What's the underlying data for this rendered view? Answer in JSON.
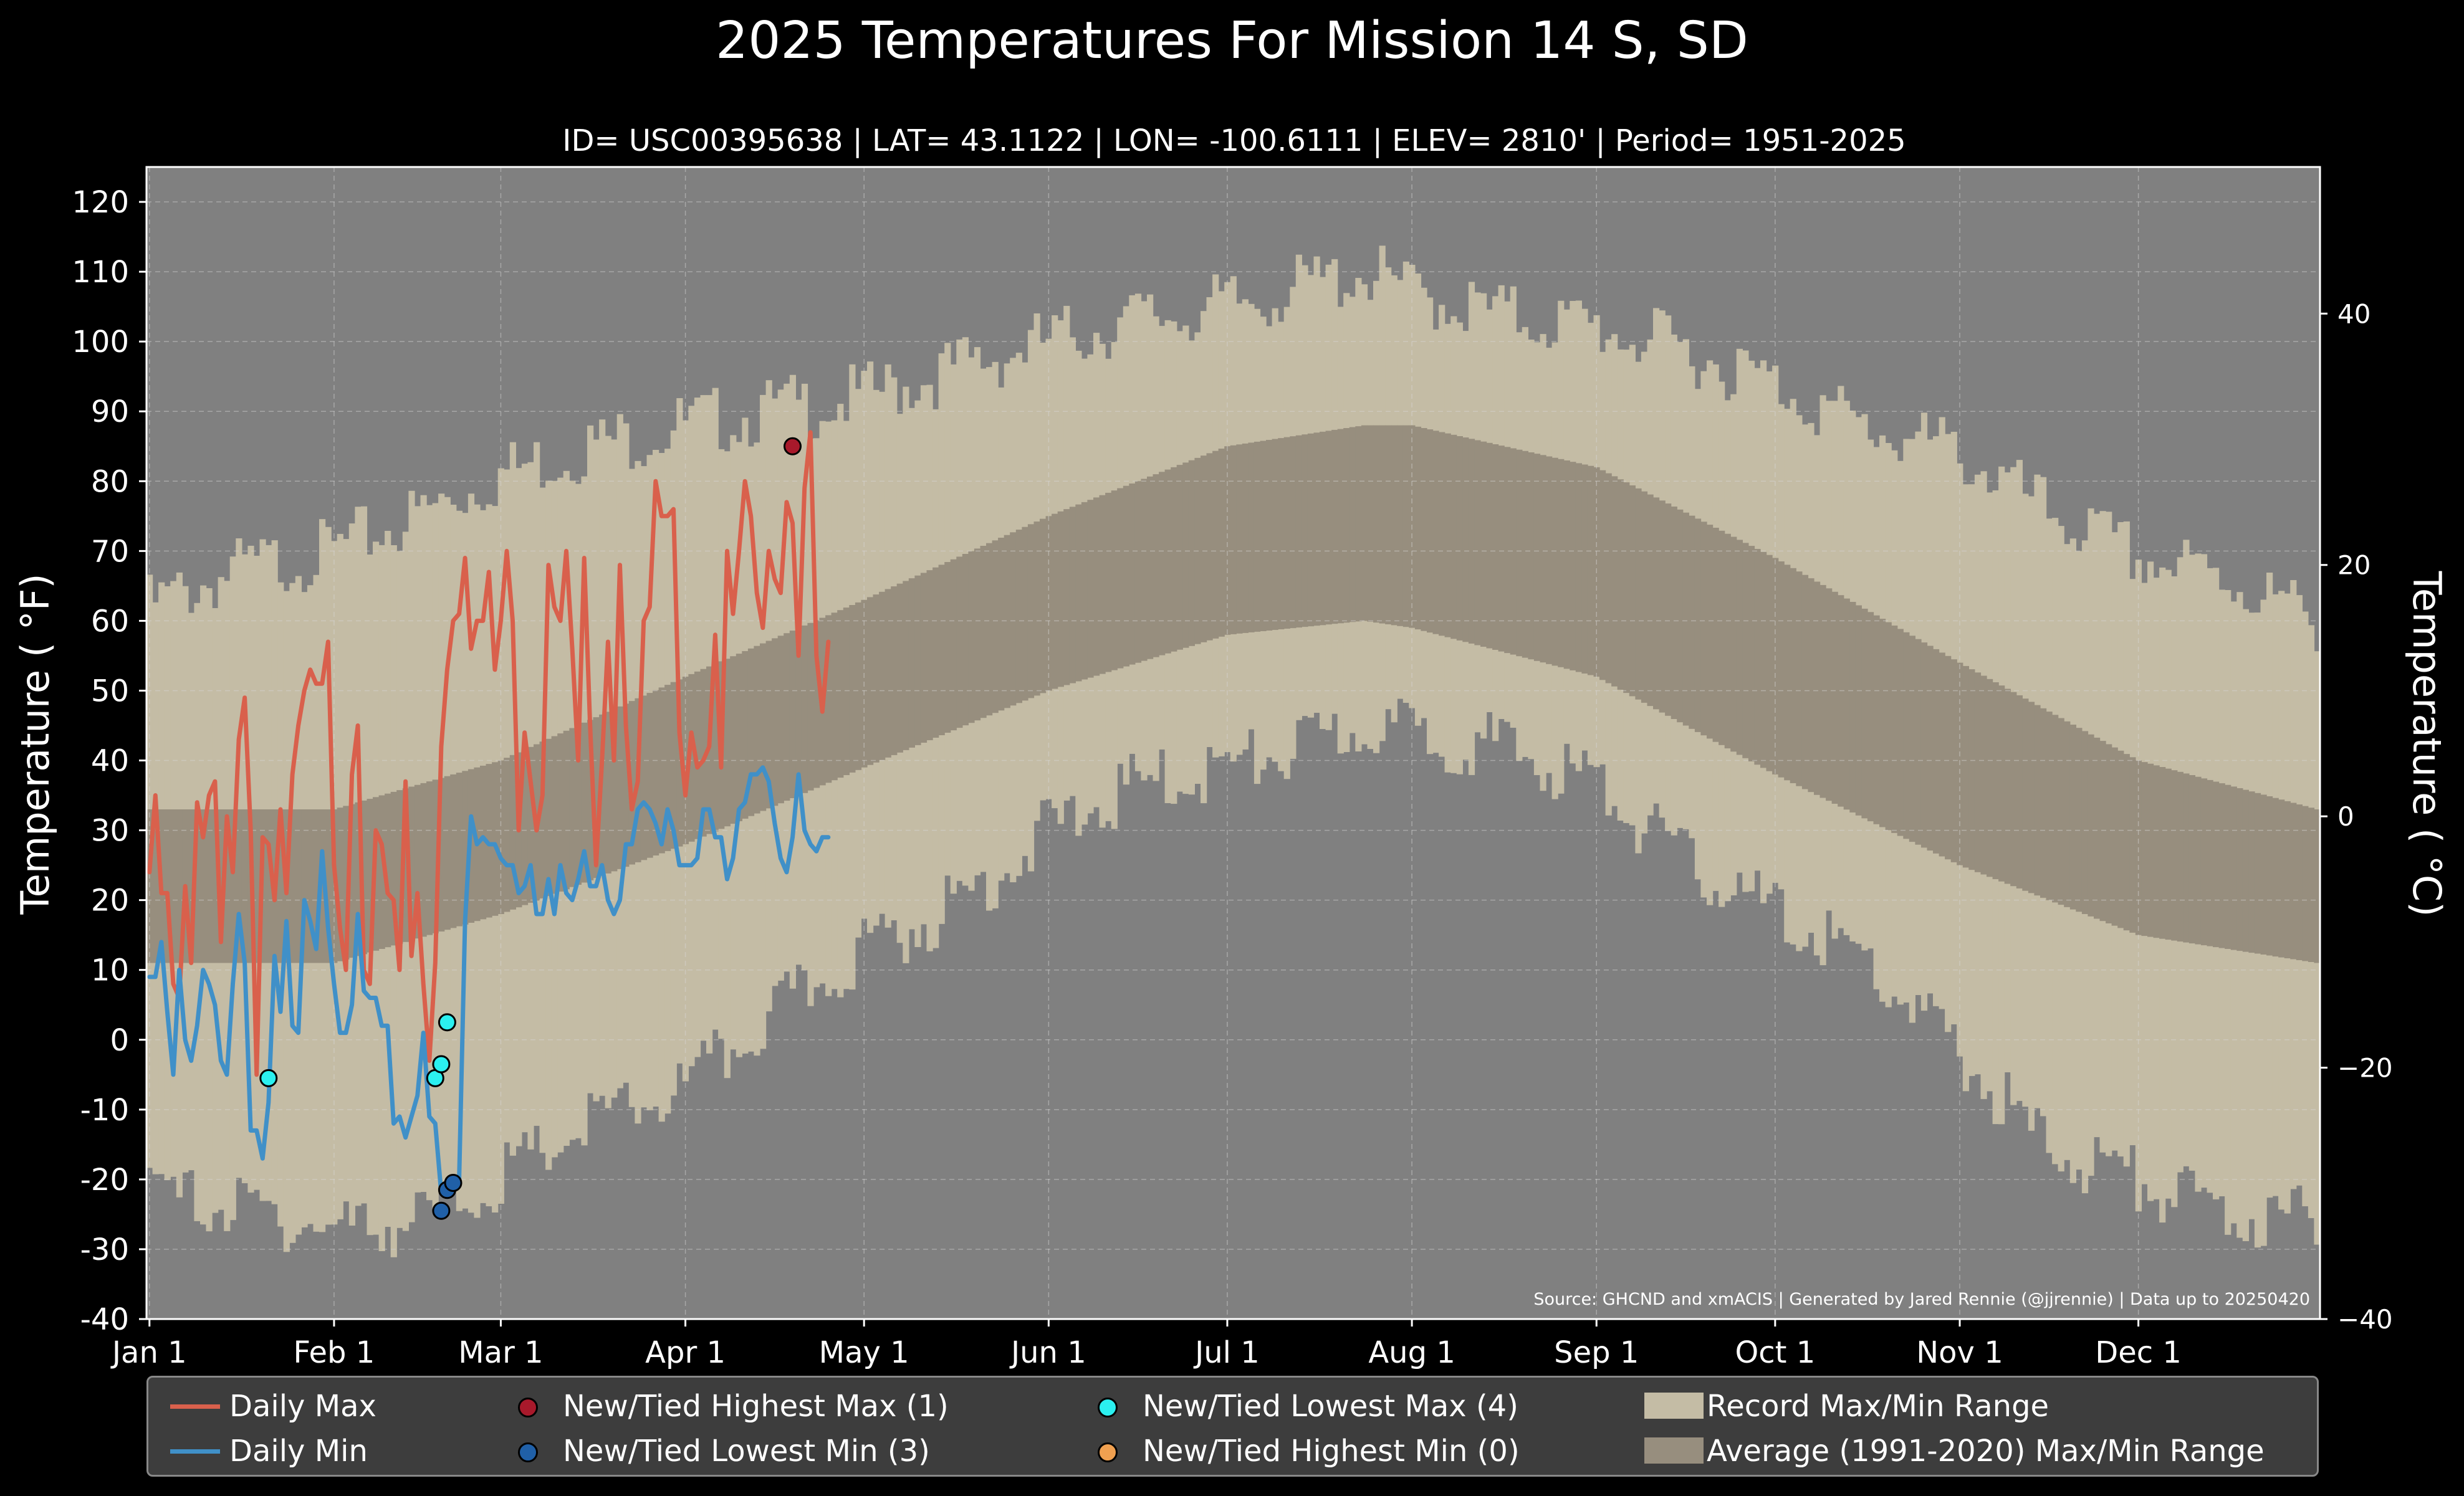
{
  "chart_data": {
    "type": "line",
    "title": "2025 Temperatures For Mission 14 S, SD",
    "subtitle": "ID= USC00395638 | LAT= 43.1122 | LON= -100.6111 | ELEV= 2810' | Period= 1951-2025",
    "ylabel": "Temperature ($^\\circ$F)",
    "ylabel_display": "Temperature ( °F)",
    "y2label_display": "Temperature ( °C)",
    "ylim": [
      -40,
      125
    ],
    "y2lim": [
      -40,
      51.67
    ],
    "yticks": [
      "-40",
      "-30",
      "-20",
      "-10",
      "0",
      "10",
      "20",
      "30",
      "40",
      "50",
      "60",
      "70",
      "80",
      "90",
      "100",
      "110",
      "120"
    ],
    "y2ticks": [
      "−40",
      "−20",
      "0",
      "20",
      "40"
    ],
    "xlim": [
      0.5,
      365.5
    ],
    "xticks": [
      {
        "day": 1,
        "label": "Jan 1"
      },
      {
        "day": 32,
        "label": "Feb 1"
      },
      {
        "day": 60,
        "label": "Mar 1"
      },
      {
        "day": 91,
        "label": "Apr 1"
      },
      {
        "day": 121,
        "label": "May 1"
      },
      {
        "day": 152,
        "label": "Jun 1"
      },
      {
        "day": 182,
        "label": "Jul 1"
      },
      {
        "day": 213,
        "label": "Aug 1"
      },
      {
        "day": 244,
        "label": "Sep 1"
      },
      {
        "day": 274,
        "label": "Oct 1"
      },
      {
        "day": 305,
        "label": "Nov 1"
      },
      {
        "day": 335,
        "label": "Dec 1"
      }
    ],
    "grid": true,
    "legend_position": "bottom",
    "source_text": "Source: GHCND and xmACIS | Generated by Jared Rennie (@jjrennie) | Data up to 20250420",
    "colors": {
      "max_line": "#d9604c",
      "min_line": "#4090c8",
      "record_band": "#c4bca5",
      "normal_band": "#978e7e",
      "plot_bg": "#808080",
      "rec_high_max": "#a8192b",
      "rec_low_min": "#2060a8",
      "rec_low_max": "#2bf0f0",
      "rec_high_min": "#f0a050"
    },
    "record_max_anchors": [
      [
        1,
        62
      ],
      [
        15,
        67
      ],
      [
        32,
        70
      ],
      [
        46,
        75
      ],
      [
        60,
        81
      ],
      [
        75,
        85
      ],
      [
        91,
        88
      ],
      [
        105,
        90
      ],
      [
        121,
        92
      ],
      [
        136,
        96
      ],
      [
        152,
        100
      ],
      [
        166,
        103
      ],
      [
        182,
        105
      ],
      [
        196,
        108
      ],
      [
        205,
        110
      ],
      [
        213,
        107
      ],
      [
        227,
        104
      ],
      [
        244,
        102
      ],
      [
        258,
        99
      ],
      [
        274,
        94
      ],
      [
        288,
        88
      ],
      [
        305,
        84
      ],
      [
        319,
        76
      ],
      [
        335,
        69
      ],
      [
        350,
        66
      ],
      [
        365,
        60
      ]
    ],
    "record_min_anchors": [
      [
        1,
        -22
      ],
      [
        15,
        -24
      ],
      [
        32,
        -27
      ],
      [
        46,
        -26
      ],
      [
        60,
        -20
      ],
      [
        75,
        -12
      ],
      [
        91,
        -7
      ],
      [
        105,
        3
      ],
      [
        121,
        13
      ],
      [
        136,
        19
      ],
      [
        152,
        30
      ],
      [
        166,
        36
      ],
      [
        182,
        39
      ],
      [
        196,
        42
      ],
      [
        205,
        45
      ],
      [
        213,
        44
      ],
      [
        227,
        42
      ],
      [
        244,
        37
      ],
      [
        258,
        26
      ],
      [
        274,
        18
      ],
      [
        288,
        12
      ],
      [
        305,
        -2
      ],
      [
        319,
        -15
      ],
      [
        335,
        -20
      ],
      [
        350,
        -25
      ],
      [
        365,
        -26
      ]
    ],
    "normal_max_anchors": [
      [
        1,
        33
      ],
      [
        32,
        33
      ],
      [
        60,
        40
      ],
      [
        91,
        52
      ],
      [
        121,
        63
      ],
      [
        152,
        75
      ],
      [
        182,
        85
      ],
      [
        205,
        88
      ],
      [
        213,
        88
      ],
      [
        244,
        82
      ],
      [
        274,
        69
      ],
      [
        305,
        54
      ],
      [
        335,
        40
      ],
      [
        365,
        33
      ]
    ],
    "normal_min_anchors": [
      [
        1,
        11
      ],
      [
        32,
        11
      ],
      [
        60,
        18
      ],
      [
        91,
        28
      ],
      [
        121,
        39
      ],
      [
        152,
        50
      ],
      [
        182,
        58
      ],
      [
        205,
        60
      ],
      [
        213,
        59
      ],
      [
        244,
        52
      ],
      [
        274,
        38
      ],
      [
        305,
        25
      ],
      [
        335,
        15
      ],
      [
        365,
        11
      ]
    ],
    "series": [
      {
        "name": "Daily Max",
        "x_start_day": 1,
        "values": [
          24,
          35,
          21,
          21,
          8,
          6,
          22,
          11,
          34,
          29,
          35,
          37,
          14,
          32,
          24,
          43,
          49,
          30,
          -5,
          29,
          28,
          20,
          33,
          21,
          38,
          45,
          50,
          53,
          51,
          51,
          57,
          25,
          16,
          10,
          38,
          45,
          10,
          8,
          30,
          28,
          21,
          20,
          10,
          37,
          12,
          21,
          8,
          -3,
          11,
          42,
          53,
          60,
          61,
          69,
          56,
          60,
          60,
          67,
          53,
          60,
          70,
          60,
          30,
          44,
          37,
          30,
          35,
          68,
          62,
          60,
          70,
          56,
          40,
          69,
          45,
          25,
          40,
          57,
          40,
          68,
          45,
          33,
          37,
          60,
          62,
          80,
          75,
          75,
          76,
          44,
          35,
          44,
          39,
          40,
          42,
          58,
          39,
          70,
          61,
          70,
          80,
          75,
          64,
          59,
          70,
          66,
          64,
          77,
          74,
          55,
          79,
          87,
          55,
          47,
          57
        ]
      },
      {
        "name": "Daily Min",
        "x_start_day": 1,
        "values": [
          9,
          9,
          14,
          4,
          -5,
          10,
          0,
          -3,
          2,
          10,
          8,
          5,
          -3,
          -5,
          8,
          18,
          11,
          -13,
          -13,
          -17,
          -9,
          12,
          4,
          17,
          2,
          1,
          20,
          17,
          13,
          27,
          16,
          8,
          1,
          1,
          5,
          18,
          7,
          6,
          6,
          2,
          2,
          -12,
          -11,
          -14,
          -11,
          -8,
          1,
          -11,
          -12,
          -22,
          -22,
          -20,
          -20,
          17,
          32,
          28,
          29,
          28,
          28,
          26,
          25,
          25,
          21,
          22,
          25,
          18,
          18,
          23,
          18,
          25,
          21,
          20,
          23,
          27,
          22,
          22,
          25,
          20,
          18,
          20,
          28,
          28,
          33,
          34,
          33,
          31,
          28,
          33,
          30,
          25,
          25,
          25,
          26,
          33,
          33,
          29,
          29,
          23,
          26,
          33,
          34,
          38,
          38,
          39,
          37,
          31,
          26,
          24,
          29,
          38,
          30,
          28,
          27,
          29,
          29
        ]
      }
    ],
    "record_points": [
      {
        "type": "high_max",
        "day": 109,
        "value": 85
      },
      {
        "type": "low_min",
        "day": 50,
        "value": -24.5
      },
      {
        "type": "low_min",
        "day": 51,
        "value": -21.5
      },
      {
        "type": "low_min",
        "day": 52,
        "value": -20.5
      },
      {
        "type": "low_max",
        "day": 21,
        "value": -5.5
      },
      {
        "type": "low_max",
        "day": 49,
        "value": -5.5
      },
      {
        "type": "low_max",
        "day": 50,
        "value": -3.5
      },
      {
        "type": "low_max",
        "day": 51,
        "value": 2.5
      }
    ],
    "legend": [
      {
        "label": "Daily Max",
        "kind": "line",
        "color": "#d9604c"
      },
      {
        "label": "Daily Min",
        "kind": "line",
        "color": "#4090c8"
      },
      {
        "label": "New/Tied Highest Max (1)",
        "kind": "dot",
        "color": "#a8192b"
      },
      {
        "label": "New/Tied Lowest Min (3)",
        "kind": "dot",
        "color": "#2060a8"
      },
      {
        "label": "New/Tied Lowest Max (4)",
        "kind": "dot",
        "color": "#2bf0f0"
      },
      {
        "label": "New/Tied Highest Min (0)",
        "kind": "dot",
        "color": "#f0a050"
      },
      {
        "label": "Record Max/Min Range",
        "kind": "patch",
        "color": "#c4bca5"
      },
      {
        "label": "Average (1991-2020) Max/Min Range",
        "kind": "patch",
        "color": "#978e7e"
      }
    ]
  }
}
